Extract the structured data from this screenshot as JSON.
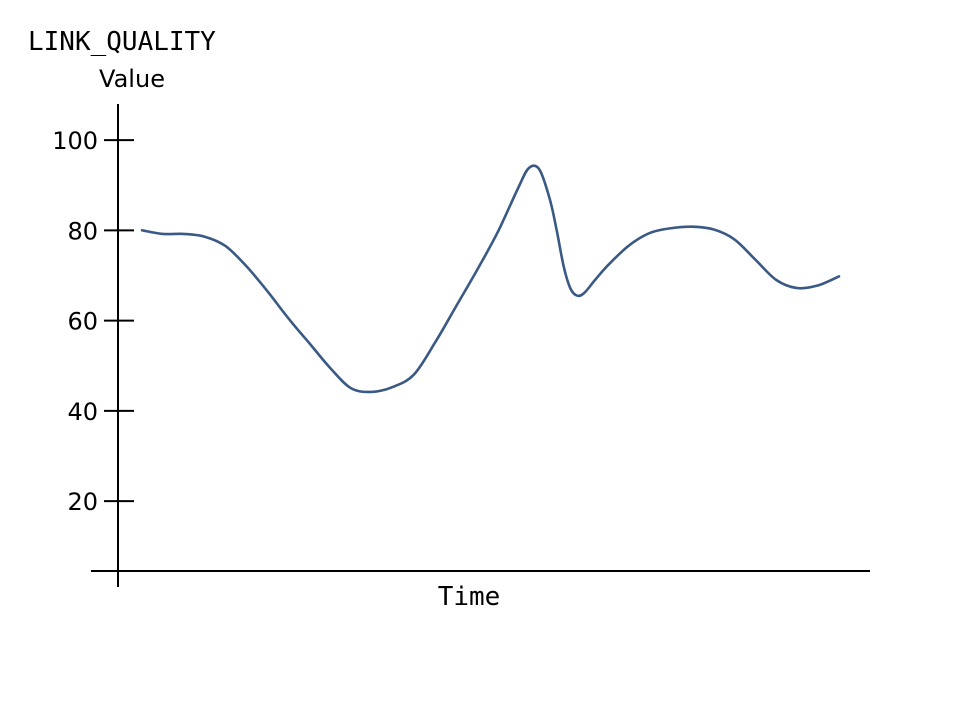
{
  "chart_data": {
    "type": "line",
    "title": "LINK_QUALITY",
    "ylabel": "Value",
    "xlabel": "Time",
    "yticks": [
      20,
      40,
      60,
      80,
      100
    ],
    "ylim": [
      4.5,
      108
    ],
    "xlim": [
      0,
      100
    ],
    "grid": false,
    "line_color": "#3a5a85",
    "series": [
      {
        "x": [
          0,
          3,
          6,
          9,
          12,
          15,
          18,
          21,
          24,
          27,
          30,
          33,
          36,
          39,
          42,
          45,
          48,
          51,
          54,
          55.5,
          57,
          58.5,
          59.5,
          60.5,
          61.5,
          62.5,
          63.5,
          65,
          67,
          70,
          73,
          76,
          79,
          82,
          85,
          88,
          91,
          94,
          97,
          100
        ],
        "y": [
          80,
          79.2,
          79.2,
          78.6,
          76.5,
          72,
          66.5,
          60.5,
          55,
          49.5,
          45,
          44.2,
          45.3,
          48,
          55,
          63,
          71,
          79.5,
          89.5,
          93.8,
          93.5,
          87,
          80,
          72,
          67,
          65.5,
          66.2,
          69,
          72.5,
          76.8,
          79.5,
          80.5,
          80.8,
          80.2,
          78,
          73.5,
          69,
          67.2,
          67.8,
          69.8
        ]
      }
    ]
  }
}
